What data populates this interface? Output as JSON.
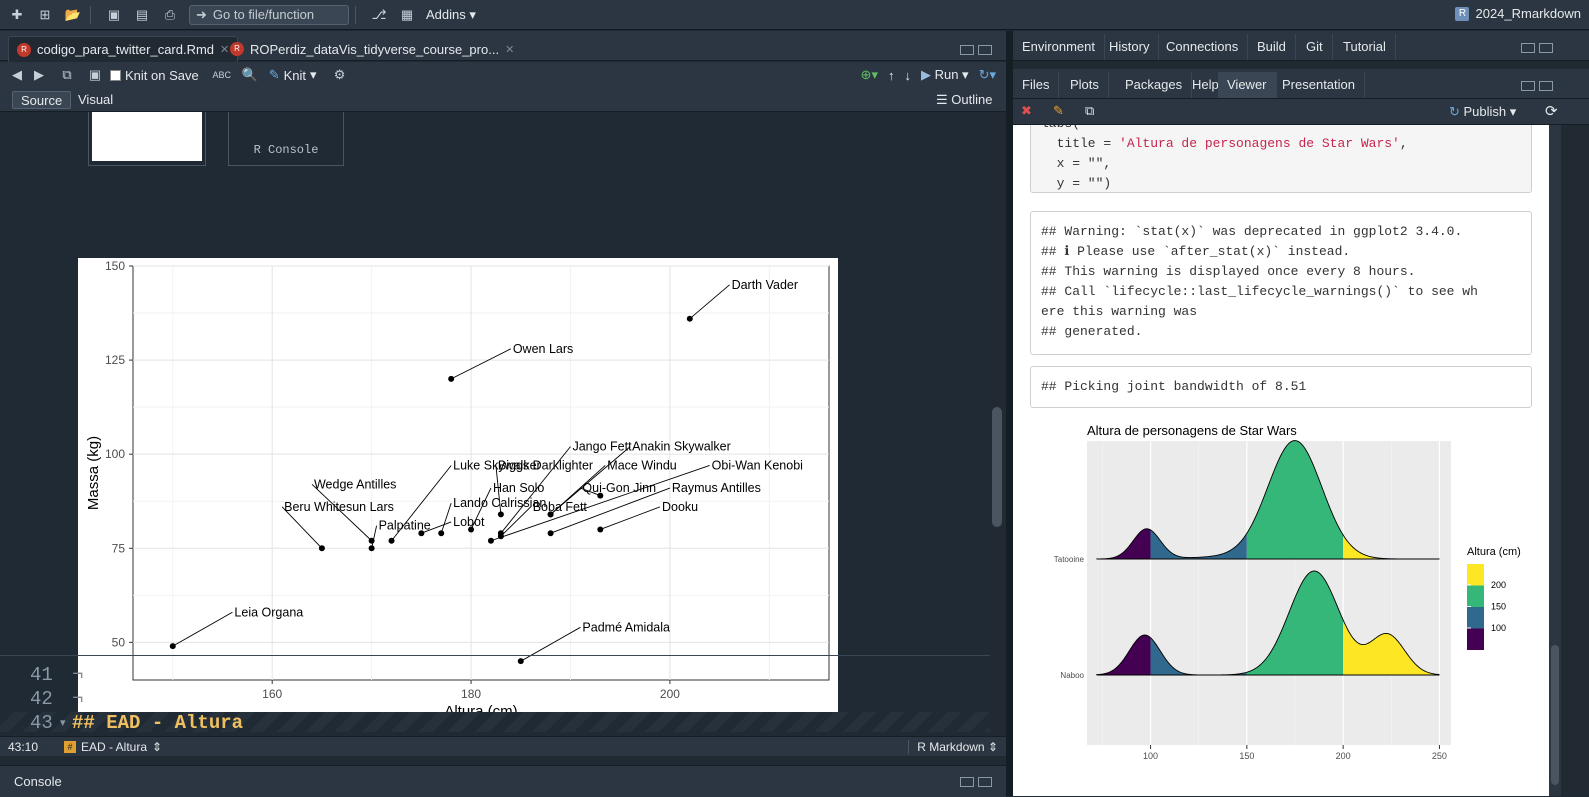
{
  "topbar": {
    "goto_placeholder": "Go to file/function",
    "addins_label": "Addins",
    "project_label": "2024_Rmarkdown"
  },
  "editor": {
    "tabs": [
      {
        "label": "codigo_para_twitter_card.Rmd"
      },
      {
        "label": "ROPerdiz_dataVis_tidyverse_course_pro..."
      }
    ],
    "toolbar": {
      "knit_on_save": "Knit on Save",
      "knit": "Knit",
      "run": "Run",
      "outline": "Outline"
    },
    "mode_tabs": [
      "Source",
      "Visual"
    ],
    "thumb_console": "R Console",
    "lines": [
      {
        "num": "41",
        "text": "¬"
      },
      {
        "num": "42",
        "text": "¬"
      },
      {
        "num": "43",
        "text": "## EAD - Altura"
      }
    ],
    "status": {
      "position": "43:10",
      "section": "EAD - Altura",
      "filetype": "R Markdown"
    },
    "console_label": "Console"
  },
  "plot": {
    "xlabel": "Altura (cm)",
    "ylabel": "Massa (kg)",
    "xticks": [
      "160",
      "180",
      "200"
    ],
    "yticks": [
      "50",
      "75",
      "100",
      "125",
      "150"
    ]
  },
  "chart_data": [
    {
      "type": "scatter",
      "title": "",
      "xlabel": "Altura (cm)",
      "ylabel": "Massa (kg)",
      "xlim": [
        146,
        216
      ],
      "ylim": [
        40,
        150
      ],
      "grid": true,
      "points": [
        {
          "label": "Darth Vader",
          "x": 202,
          "y": 136,
          "lx": 206,
          "ly": 145
        },
        {
          "label": "Owen Lars",
          "x": 178,
          "y": 120,
          "lx": 184,
          "ly": 128
        },
        {
          "label": "Leia Organa",
          "x": 150,
          "y": 49,
          "lx": 156,
          "ly": 58
        },
        {
          "label": "Padmé Amidala",
          "x": 185,
          "y": 45,
          "lx": 191,
          "ly": 54
        },
        {
          "label": "Luke Skywalker",
          "x": 172,
          "y": 77,
          "lx": 178,
          "ly": 97
        },
        {
          "label": "Wedge Antilles",
          "x": 170,
          "y": 77,
          "lx": 164,
          "ly": 92
        },
        {
          "label": "Beru Whitesun Lars",
          "x": 165,
          "y": 75,
          "lx": 161,
          "ly": 86
        },
        {
          "label": "Palpatine",
          "x": 170,
          "y": 75,
          "lx": 170.5,
          "ly": 81
        },
        {
          "label": "Lobot",
          "x": 175,
          "y": 79,
          "lx": 178,
          "ly": 82
        },
        {
          "label": "Lando Calrissian",
          "x": 177,
          "y": 79,
          "lx": 178,
          "ly": 87
        },
        {
          "label": "Biggs Darklighter",
          "x": 183,
          "y": 84,
          "lx": 182.5,
          "ly": 97
        },
        {
          "label": "Han Solo",
          "x": 180,
          "y": 80,
          "lx": 182,
          "ly": 91
        },
        {
          "label": "Jango Fett",
          "x": 183,
          "y": 79,
          "lx": 190,
          "ly": 102
        },
        {
          "label": "Anakin Skywalker",
          "x": 188,
          "y": 84,
          "lx": 196,
          "ly": 102
        },
        {
          "label": "Mace Windu",
          "x": 188,
          "y": 84,
          "lx": 193.5,
          "ly": 97
        },
        {
          "label": "Obi-Wan Kenobi",
          "x": 182,
          "y": 77,
          "lx": 204,
          "ly": 97
        },
        {
          "label": "Qui-Gon Jinn",
          "x": 193,
          "y": 89,
          "lx": 191,
          "ly": 91
        },
        {
          "label": "Boba Fett",
          "x": 183,
          "y": 78.2,
          "lx": 186,
          "ly": 86
        },
        {
          "label": "Raymus Antilles",
          "x": 188,
          "y": 79,
          "lx": 200,
          "ly": 91
        },
        {
          "label": "Dooku",
          "x": 193,
          "y": 80,
          "lx": 199,
          "ly": 86
        }
      ]
    },
    {
      "type": "area",
      "title": "Altura de personagens de Star Wars",
      "xlabel": "",
      "ylabel": "",
      "xticks": [
        "100",
        "150",
        "200",
        "250"
      ],
      "categories": [
        "Tatooine",
        "Naboo"
      ],
      "legend_title": "Altura (cm)",
      "legend_entries": [
        "200",
        "150",
        "100"
      ],
      "legend_colors": [
        "#fde725",
        "#31688e",
        "#440154"
      ]
    }
  ],
  "viewer": {
    "code_lines": [
      "labs(",
      "  title = 'Altura de personagens de Star Wars',",
      "  x = \"\",",
      "  y = \"\")"
    ],
    "warning_lines": [
      "## Warning: `stat(x)` was deprecated in ggplot2 3.4.0.",
      "## ℹ Please use `after_stat(x)` instead.",
      "## This warning is displayed once every 8 hours.",
      "## Call `lifecycle::last_lifecycle_warnings()` to see wh",
      "ere this warning was",
      "## generated."
    ],
    "picking": "## Picking joint bandwidth of 8.51"
  },
  "right": {
    "top_tabs": [
      "Environment",
      "History",
      "Connections",
      "Build",
      "Git",
      "Tutorial"
    ],
    "bottom_tabs": [
      "Files",
      "Plots",
      "Packages",
      "Help",
      "Viewer",
      "Presentation"
    ],
    "active_bottom": "Viewer",
    "publish": "Publish"
  }
}
